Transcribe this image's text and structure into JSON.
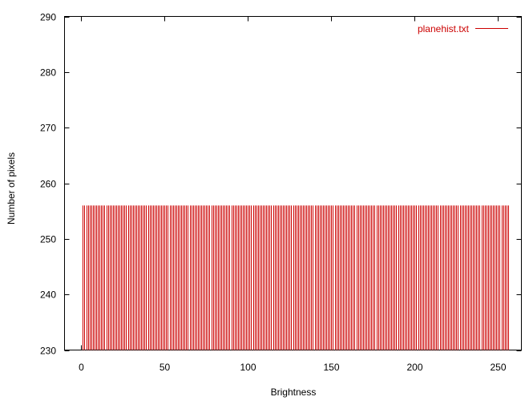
{
  "chart_data": {
    "type": "bar",
    "title": "",
    "xlabel": "Brightness",
    "ylabel": "Number of pixels",
    "xlim": [
      -10,
      264
    ],
    "ylim": [
      230,
      290
    ],
    "xticks": [
      0,
      50,
      100,
      150,
      200,
      250
    ],
    "yticks": [
      230,
      240,
      250,
      260,
      270,
      280,
      290
    ],
    "xtick_labels": [
      "0",
      "50",
      "100",
      "150",
      "200",
      "250"
    ],
    "ytick_labels": [
      "230",
      "240",
      "250",
      "260",
      "270",
      "280",
      "290"
    ],
    "grid": false,
    "legend_position": "top-right",
    "bar_style": "impulses",
    "series": [
      {
        "name": "planehist.txt",
        "color": "#cc0000",
        "x_start": 1,
        "x_end": 256,
        "x_step": 1,
        "value": 256
      }
    ]
  }
}
